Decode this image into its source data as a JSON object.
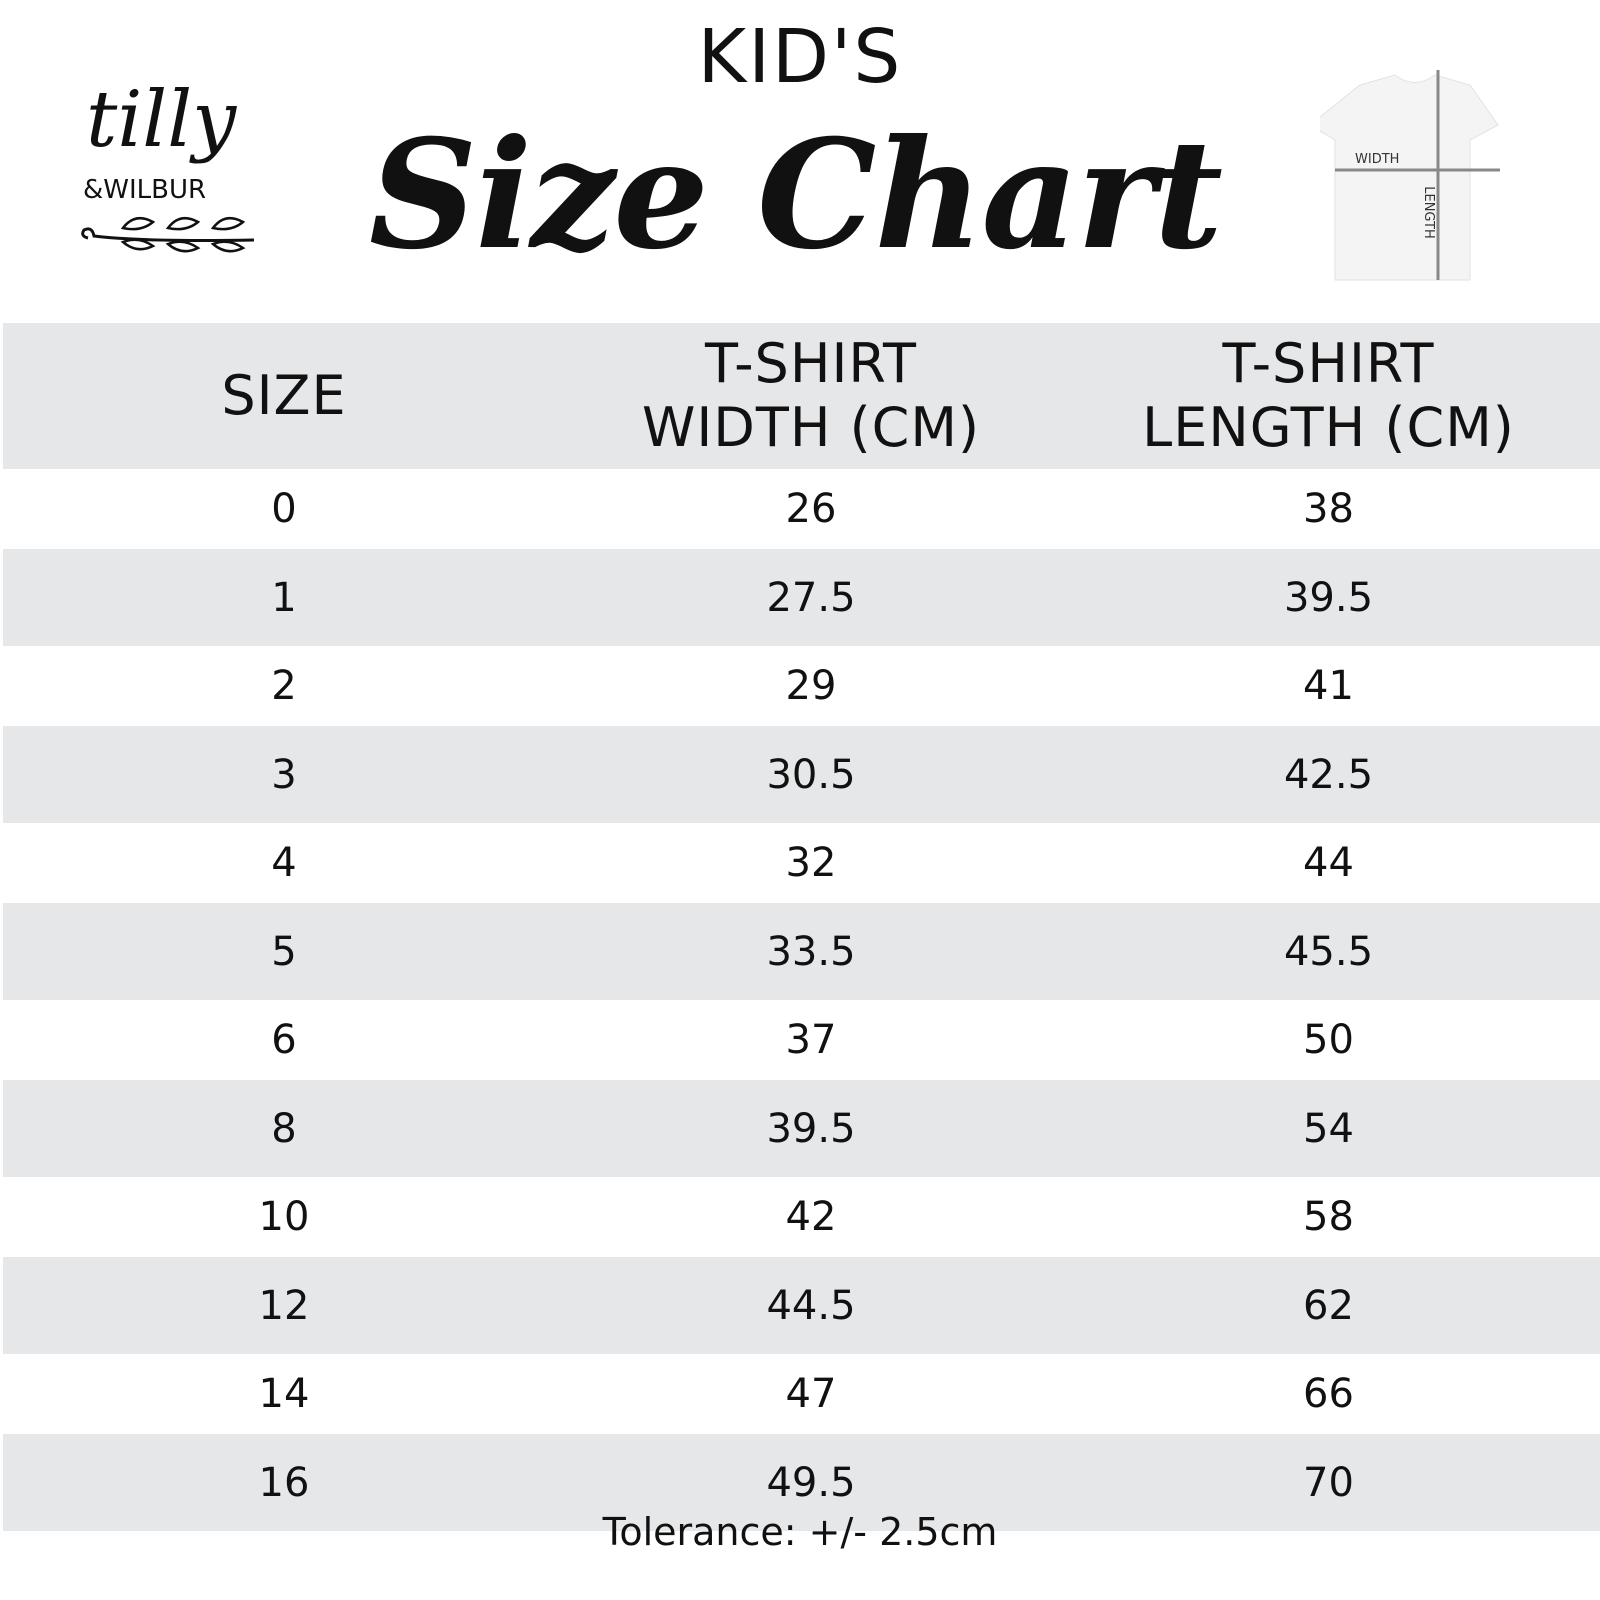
{
  "header": {
    "kicker": "KID'S",
    "title": "Size Chart"
  },
  "logo": {
    "line1": "tilly",
    "line2": "&WILBUR"
  },
  "shirt_diagram": {
    "width_label": "WIDTH",
    "length_label": "LENGTH"
  },
  "table": {
    "headers": [
      {
        "line1": "SIZE",
        "line2": ""
      },
      {
        "line1": "T-SHIRT",
        "line2": "WIDTH (CM)"
      },
      {
        "line1": "T-SHIRT",
        "line2": "LENGTH (CM)"
      }
    ],
    "rows": [
      [
        "0",
        "26",
        "38"
      ],
      [
        "1",
        "27.5",
        "39.5"
      ],
      [
        "2",
        "29",
        "41"
      ],
      [
        "3",
        "30.5",
        "42.5"
      ],
      [
        "4",
        "32",
        "44"
      ],
      [
        "5",
        "33.5",
        "45.5"
      ],
      [
        "6",
        "37",
        "50"
      ],
      [
        "8",
        "39.5",
        "54"
      ],
      [
        "10",
        "42",
        "58"
      ],
      [
        "12",
        "44.5",
        "62"
      ],
      [
        "14",
        "47",
        "66"
      ],
      [
        "16",
        "49.5",
        "70"
      ]
    ]
  },
  "footer": {
    "tolerance": "Tolerance: +/- 2.5cm"
  },
  "colors": {
    "stripe": "#e6e7e9",
    "text": "#111111"
  }
}
